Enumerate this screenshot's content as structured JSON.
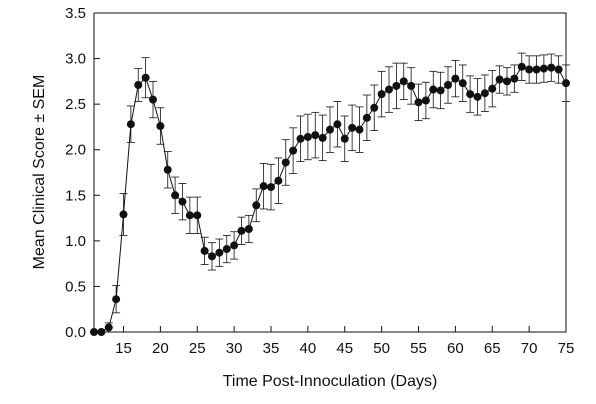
{
  "chart_data": {
    "type": "line",
    "xlabel": "Time Post-Innoculation (Days)",
    "ylabel": "Mean Clinical Score ± SEM",
    "xlim": [
      11,
      75
    ],
    "ylim": [
      0,
      3.5
    ],
    "xticks": [
      15,
      20,
      25,
      30,
      35,
      40,
      45,
      50,
      55,
      60,
      65,
      70,
      75
    ],
    "yticks": [
      0.0,
      0.5,
      1.0,
      1.5,
      2.0,
      2.5,
      3.0,
      3.5
    ],
    "ytick_labels": [
      "0.0",
      "0.5",
      "1.0",
      "1.5",
      "2.0",
      "2.5",
      "3.0",
      "3.5"
    ],
    "grid": false,
    "series": [
      {
        "x": [
          11,
          12,
          13,
          14,
          15,
          16,
          17,
          18,
          19,
          20,
          21,
          22,
          23,
          24,
          25,
          26,
          27,
          28,
          29,
          30,
          31,
          32,
          33,
          34,
          35,
          36,
          37,
          38,
          39,
          40,
          41,
          42,
          43,
          44,
          45,
          46,
          47,
          48,
          49,
          50,
          51,
          52,
          53,
          54,
          55,
          56,
          57,
          58,
          59,
          60,
          61,
          62,
          63,
          64,
          65,
          66,
          67,
          68,
          69,
          70,
          71,
          72,
          73,
          74,
          75
        ],
        "y": [
          0.0,
          0.0,
          0.05,
          0.36,
          1.29,
          2.28,
          2.71,
          2.79,
          2.55,
          2.26,
          1.78,
          1.5,
          1.43,
          1.28,
          1.28,
          0.89,
          0.83,
          0.87,
          0.91,
          0.95,
          1.11,
          1.13,
          1.39,
          1.6,
          1.59,
          1.66,
          1.86,
          1.99,
          2.12,
          2.14,
          2.16,
          2.13,
          2.22,
          2.28,
          2.12,
          2.24,
          2.22,
          2.35,
          2.46,
          2.61,
          2.66,
          2.7,
          2.75,
          2.7,
          2.52,
          2.54,
          2.66,
          2.65,
          2.71,
          2.78,
          2.73,
          2.61,
          2.58,
          2.62,
          2.67,
          2.77,
          2.75,
          2.78,
          2.91,
          2.88,
          2.88,
          2.89,
          2.9,
          2.88,
          2.73
        ],
        "err": [
          0.0,
          0.0,
          0.05,
          0.15,
          0.23,
          0.2,
          0.18,
          0.22,
          0.2,
          0.2,
          0.2,
          0.2,
          0.2,
          0.2,
          0.2,
          0.15,
          0.15,
          0.15,
          0.15,
          0.15,
          0.15,
          0.15,
          0.18,
          0.25,
          0.25,
          0.25,
          0.25,
          0.25,
          0.25,
          0.25,
          0.25,
          0.25,
          0.25,
          0.25,
          0.25,
          0.25,
          0.25,
          0.25,
          0.25,
          0.25,
          0.25,
          0.25,
          0.2,
          0.2,
          0.2,
          0.2,
          0.2,
          0.2,
          0.2,
          0.2,
          0.2,
          0.2,
          0.2,
          0.2,
          0.2,
          0.15,
          0.15,
          0.15,
          0.15,
          0.15,
          0.15,
          0.15,
          0.15,
          0.15,
          0.2
        ]
      }
    ]
  }
}
